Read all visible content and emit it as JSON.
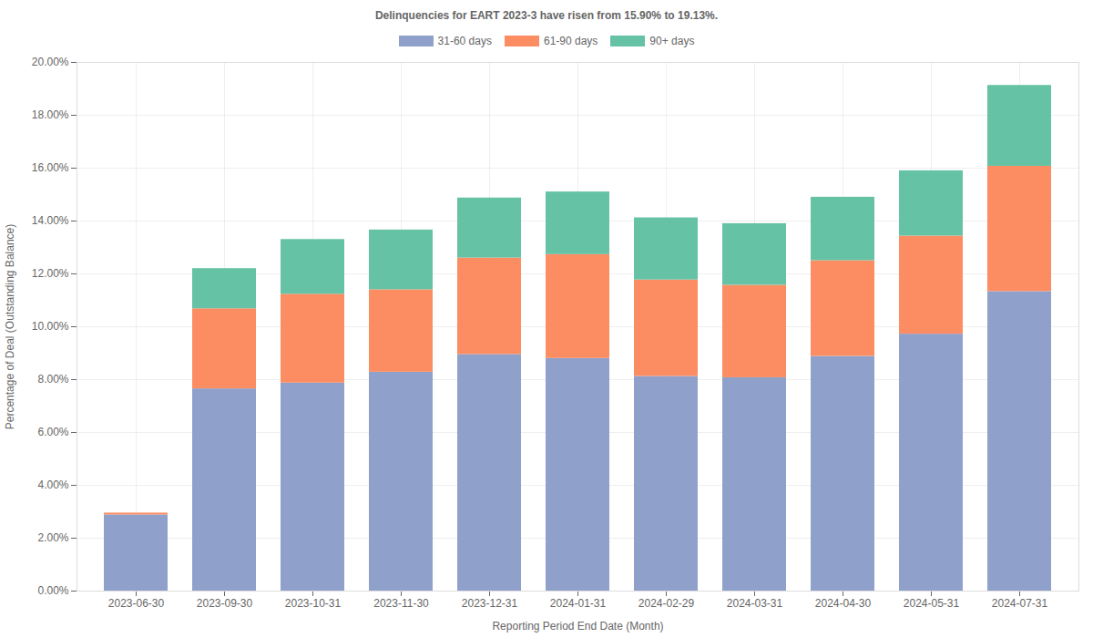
{
  "chart_data": {
    "type": "bar",
    "stacked": true,
    "grid": true,
    "legend": "top",
    "title": "Delinquencies for EART 2023-3 have risen from 15.90% to 19.13%.",
    "x_label": "Reporting Period End Date (Month)",
    "y_label": "Percentage of Deal (Outstanding Balance)",
    "categories": [
      "2023-06-30",
      "2023-09-30",
      "2023-10-31",
      "2023-11-30",
      "2023-12-31",
      "2024-01-31",
      "2024-02-29",
      "2024-03-31",
      "2024-04-30",
      "2024-05-31",
      "2024-07-31"
    ],
    "series": [
      {
        "name": "31-60 days",
        "color": "#8fa1cb",
        "values": [
          2.88,
          7.65,
          7.87,
          8.28,
          8.95,
          8.8,
          8.12,
          8.07,
          8.88,
          9.72,
          11.33
        ]
      },
      {
        "name": "61-90 days",
        "color": "#fc8d62",
        "values": [
          0.07,
          3.03,
          3.36,
          3.12,
          3.65,
          3.93,
          3.65,
          3.5,
          3.62,
          3.71,
          4.74
        ]
      },
      {
        "name": "90+ days",
        "color": "#66c2a5",
        "values": [
          0,
          1.52,
          2.07,
          2.26,
          2.27,
          2.37,
          2.35,
          2.33,
          2.4,
          2.47,
          3.06
        ]
      }
    ],
    "ylim": [
      0,
      20
    ],
    "yticks": [
      {
        "value": 0,
        "label": "0.00%"
      },
      {
        "value": 2,
        "label": "2.00%"
      },
      {
        "value": 4,
        "label": "4.00%"
      },
      {
        "value": 6,
        "label": "6.00%"
      },
      {
        "value": 8,
        "label": "8.00%"
      },
      {
        "value": 10,
        "label": "10.00%"
      },
      {
        "value": 12,
        "label": "12.00%"
      },
      {
        "value": 14,
        "label": "14.00%"
      },
      {
        "value": 16,
        "label": "16.00%"
      },
      {
        "value": 18,
        "label": "18.00%"
      },
      {
        "value": 20,
        "label": "20.00%"
      }
    ]
  }
}
